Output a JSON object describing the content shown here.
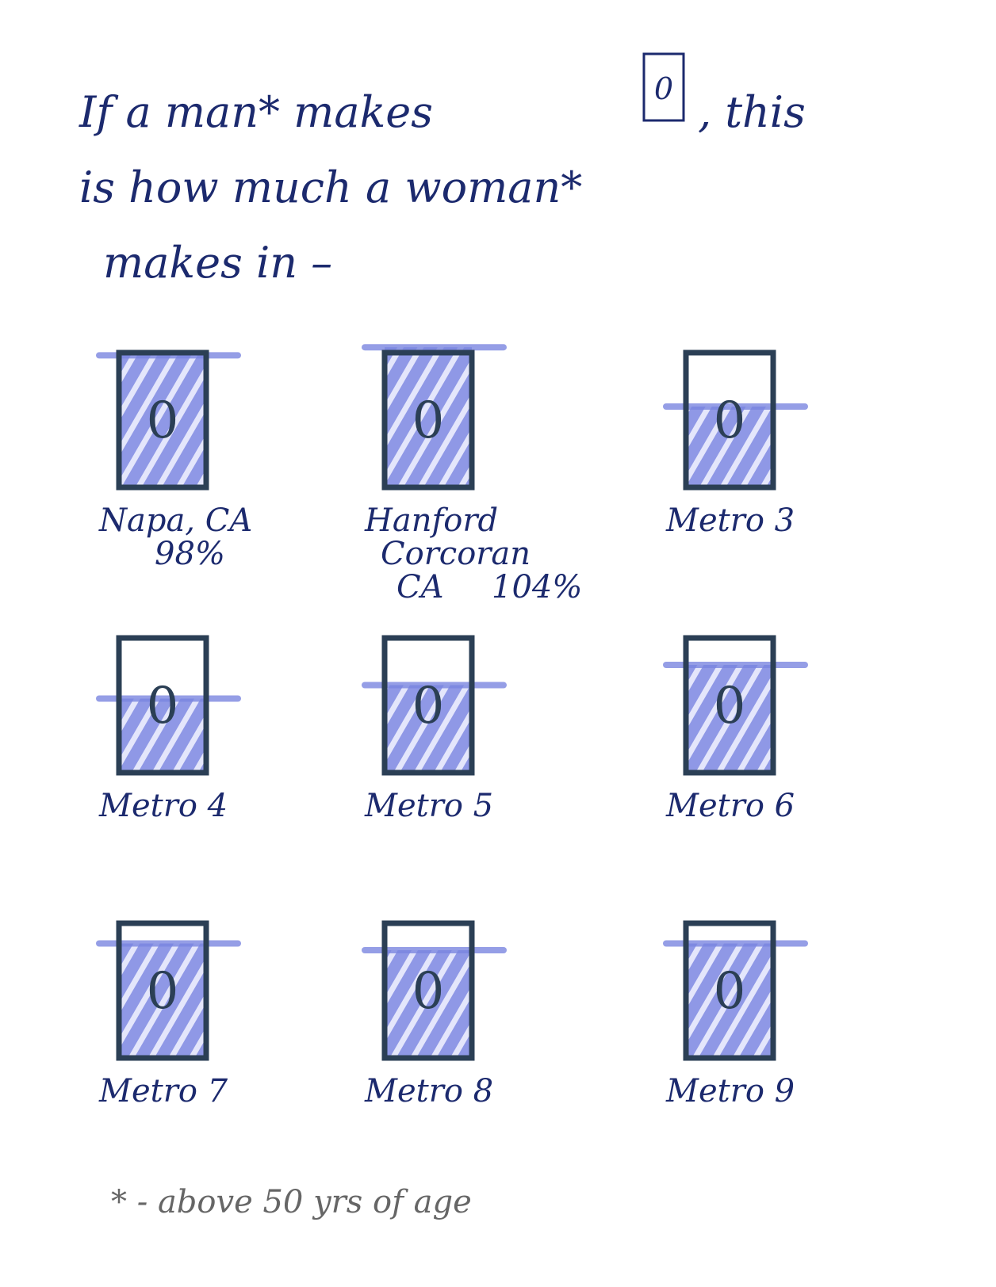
{
  "title_parts": [
    "If a man* makes",
    ", this",
    "is how much a woman*",
    "makes in –"
  ],
  "symbol": "0",
  "panels": [
    {
      "name_lines": [
        "Napa, CA"
      ],
      "value": 98,
      "value_label": "98%"
    },
    {
      "name_lines": [
        "Hanford",
        "Corcoran",
        "CA"
      ],
      "value": 104,
      "value_label": "104%"
    },
    {
      "name_lines": [
        "Metro 3"
      ],
      "value": 60
    },
    {
      "name_lines": [
        "Metro 4"
      ],
      "value": 55
    },
    {
      "name_lines": [
        "Metro 5"
      ],
      "value": 65
    },
    {
      "name_lines": [
        "Metro 6"
      ],
      "value": 80
    },
    {
      "name_lines": [
        "Metro 7"
      ],
      "value": 85
    },
    {
      "name_lines": [
        "Metro 8"
      ],
      "value": 80
    },
    {
      "name_lines": [
        "Metro 9"
      ],
      "value": 85
    }
  ],
  "footnote": "* - above 50 yrs of age"
}
